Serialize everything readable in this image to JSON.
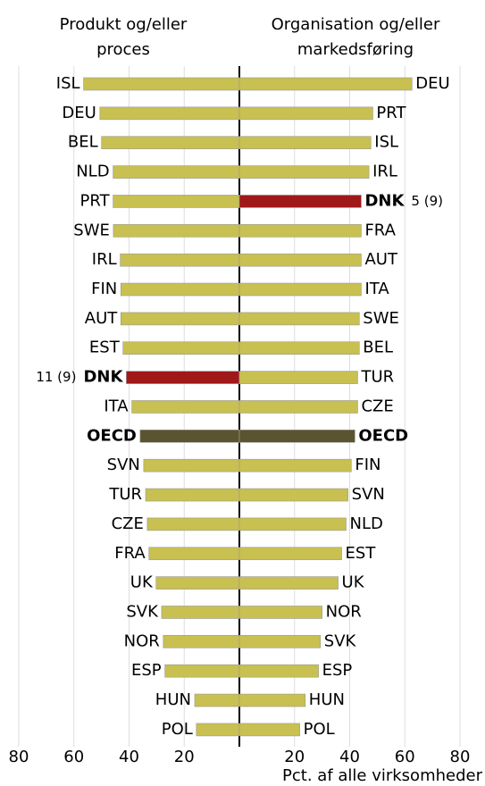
{
  "chart_data": [
    {
      "type": "bar",
      "orientation": "horizontal",
      "direction": "left",
      "title": [
        "Produkt og/eller",
        "proces"
      ],
      "categories": [
        "ISL",
        "DEU",
        "BEL",
        "NLD",
        "PRT",
        "SWE",
        "IRL",
        "FIN",
        "AUT",
        "EST",
        "DNK",
        "ITA",
        "OECD",
        "SVN",
        "TUR",
        "CZE",
        "FRA",
        "UK",
        "SVK",
        "NOR",
        "ESP",
        "HUN",
        "POL"
      ],
      "values": [
        56.5,
        50.6,
        50,
        45.8,
        45.8,
        45.7,
        43.2,
        43,
        43,
        42.2,
        41,
        39,
        36,
        34.7,
        34,
        33.4,
        32.8,
        30.2,
        28.2,
        27.6,
        27,
        16.2,
        15.6
      ],
      "colors": [
        "#c8c050",
        "#c8c050",
        "#c8c050",
        "#c8c050",
        "#c8c050",
        "#c8c050",
        "#c8c050",
        "#c8c050",
        "#c8c050",
        "#c8c050",
        "#a01818",
        "#c8c050",
        "#5a5530",
        "#c8c050",
        "#c8c050",
        "#c8c050",
        "#c8c050",
        "#c8c050",
        "#c8c050",
        "#c8c050",
        "#c8c050",
        "#c8c050",
        "#c8c050"
      ],
      "color": "#c8c050",
      "annotations": [
        {
          "category": "DNK",
          "text": "11 (9)"
        }
      ],
      "xlim": [
        0,
        80
      ],
      "xticks": [
        20,
        40,
        60,
        80
      ],
      "grid": true
    },
    {
      "type": "bar",
      "orientation": "horizontal",
      "direction": "right",
      "title": [
        "Organisation og/eller",
        "markedsføring"
      ],
      "categories": [
        "DEU",
        "PRT",
        "ISL",
        "IRL",
        "DNK",
        "FRA",
        "AUT",
        "ITA",
        "SWE",
        "BEL",
        "TUR",
        "CZE",
        "OECD",
        "FIN",
        "SVN",
        "NLD",
        "EST",
        "UK",
        "NOR",
        "SVK",
        "ESP",
        "HUN",
        "POL"
      ],
      "values": [
        62.6,
        48.4,
        47.7,
        47,
        44.2,
        44.2,
        44.2,
        44.2,
        43.5,
        43.5,
        42.9,
        42.9,
        41.9,
        40.6,
        39.4,
        38.7,
        37.1,
        35.8,
        30,
        29.4,
        28.7,
        23.9,
        21.9
      ],
      "colors": [
        "#c8c050",
        "#c8c050",
        "#c8c050",
        "#c8c050",
        "#a01818",
        "#c8c050",
        "#c8c050",
        "#c8c050",
        "#c8c050",
        "#c8c050",
        "#c8c050",
        "#c8c050",
        "#5a5530",
        "#c8c050",
        "#c8c050",
        "#c8c050",
        "#c8c050",
        "#c8c050",
        "#c8c050",
        "#c8c050",
        "#c8c050",
        "#c8c050",
        "#c8c050"
      ],
      "color": "#c8c050",
      "annotations": [
        {
          "category": "DNK",
          "text": "5 (9)"
        }
      ],
      "xlabel": "Pct. af alle virksomheder",
      "xlim": [
        0,
        80
      ],
      "xticks": [
        20,
        40,
        60,
        80
      ],
      "grid": true
    }
  ]
}
